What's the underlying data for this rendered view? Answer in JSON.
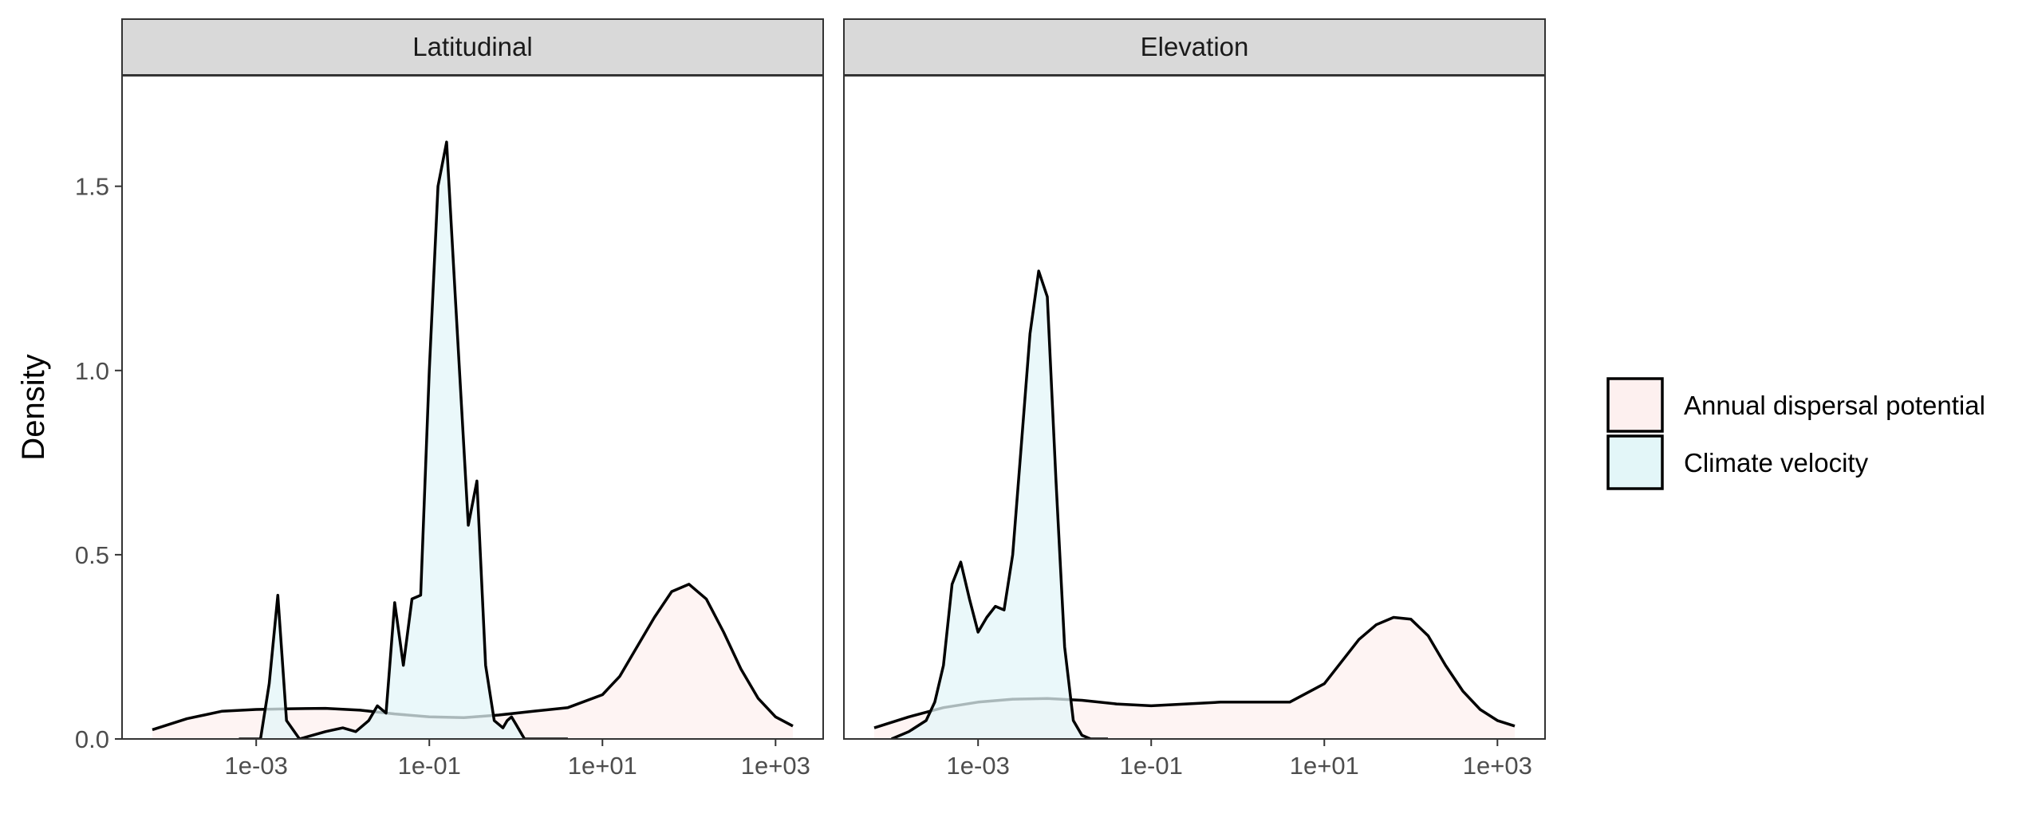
{
  "chart_data": {
    "type": "area",
    "chart_kind": "faceted density plot",
    "ylabel": "Density",
    "xlabel": "",
    "x_scale": "log10",
    "x_ticks": [
      "1e-03",
      "1e-01",
      "1e+01",
      "1e+03"
    ],
    "y_ticks": [
      "0.0",
      "0.5",
      "1.0",
      "1.5"
    ],
    "ylim": [
      0,
      1.8
    ],
    "xlim_log10": [
      -4.55,
      3.55
    ],
    "grid": false,
    "legend_position": "right",
    "legend": [
      {
        "label": "Annual dispersal potential",
        "fill": "#fdf0ef"
      },
      {
        "label": "Climate velocity",
        "fill": "#e3f6f8"
      }
    ],
    "panels": [
      {
        "title": "Latitudinal",
        "series": [
          {
            "name": "Annual dispersal potential",
            "fill": "#fdf0ef",
            "log10_x": [
              -4.2,
              -3.8,
              -3.4,
              -3.0,
              -2.6,
              -2.2,
              -1.8,
              -1.4,
              -1.0,
              -0.6,
              -0.2,
              0.2,
              0.6,
              1.0,
              1.2,
              1.4,
              1.6,
              1.8,
              2.0,
              2.2,
              2.4,
              2.6,
              2.8,
              3.0,
              3.2
            ],
            "density": [
              0.025,
              0.055,
              0.075,
              0.08,
              0.082,
              0.083,
              0.078,
              0.068,
              0.06,
              0.058,
              0.065,
              0.075,
              0.085,
              0.12,
              0.17,
              0.25,
              0.33,
              0.4,
              0.42,
              0.38,
              0.29,
              0.19,
              0.11,
              0.06,
              0.035
            ]
          },
          {
            "name": "Climate velocity",
            "fill": "#e3f6f8",
            "log10_x": [
              -3.2,
              -2.95,
              -2.85,
              -2.75,
              -2.65,
              -2.5,
              -2.2,
              -2.0,
              -1.85,
              -1.7,
              -1.6,
              -1.5,
              -1.4,
              -1.3,
              -1.2,
              -1.1,
              -1.0,
              -0.9,
              -0.8,
              -0.7,
              -0.55,
              -0.45,
              -0.35,
              -0.25,
              -0.15,
              -0.1,
              -0.05,
              0.0,
              0.05,
              0.1,
              0.2,
              0.3,
              0.4,
              0.5,
              0.6
            ],
            "density": [
              0.0,
              0.0,
              0.15,
              0.39,
              0.05,
              0.0,
              0.02,
              0.03,
              0.02,
              0.05,
              0.09,
              0.07,
              0.37,
              0.2,
              0.38,
              0.39,
              1.0,
              1.5,
              1.62,
              1.2,
              0.58,
              0.7,
              0.2,
              0.05,
              0.03,
              0.05,
              0.06,
              0.04,
              0.02,
              0.0,
              0.0,
              0.0,
              0.0,
              0.0,
              0.0
            ]
          }
        ]
      },
      {
        "title": "Elevation",
        "series": [
          {
            "name": "Annual dispersal potential",
            "fill": "#fdf0ef",
            "log10_x": [
              -4.2,
              -3.8,
              -3.4,
              -3.0,
              -2.6,
              -2.2,
              -1.8,
              -1.4,
              -1.0,
              -0.6,
              -0.2,
              0.2,
              0.6,
              1.0,
              1.2,
              1.4,
              1.6,
              1.8,
              2.0,
              2.2,
              2.4,
              2.6,
              2.8,
              3.0,
              3.2
            ],
            "density": [
              0.03,
              0.06,
              0.085,
              0.1,
              0.108,
              0.11,
              0.105,
              0.095,
              0.09,
              0.095,
              0.1,
              0.1,
              0.1,
              0.15,
              0.21,
              0.27,
              0.31,
              0.33,
              0.325,
              0.28,
              0.2,
              0.13,
              0.08,
              0.05,
              0.035
            ]
          },
          {
            "name": "Climate velocity",
            "fill": "#e3f6f8",
            "log10_x": [
              -4.0,
              -3.8,
              -3.6,
              -3.5,
              -3.4,
              -3.3,
              -3.2,
              -3.1,
              -3.0,
              -2.9,
              -2.8,
              -2.7,
              -2.6,
              -2.5,
              -2.4,
              -2.3,
              -2.2,
              -2.1,
              -2.0,
              -1.9,
              -1.8,
              -1.7,
              -1.6,
              -1.5
            ],
            "density": [
              0.0,
              0.02,
              0.05,
              0.1,
              0.2,
              0.42,
              0.48,
              0.38,
              0.29,
              0.33,
              0.36,
              0.35,
              0.5,
              0.8,
              1.1,
              1.27,
              1.2,
              0.7,
              0.25,
              0.05,
              0.01,
              0.0,
              0.0,
              0.0
            ]
          }
        ]
      }
    ]
  }
}
